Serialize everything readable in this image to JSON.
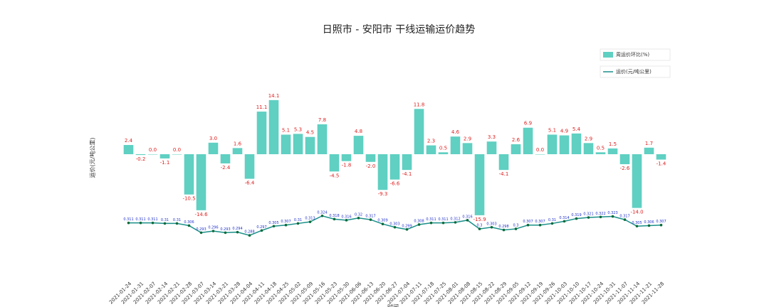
{
  "chart_data": {
    "type": "bar_line",
    "title": "日照市 - 安阳市 干线运输运价趋势",
    "ylabel": "运价(元/吨公里)",
    "xlabel": "时间",
    "categories": [
      "2021-01-24",
      "2021-01-31",
      "2021-02-07",
      "2021-02-14",
      "2021-02-21",
      "2021-02-28",
      "2021-03-07",
      "2021-03-14",
      "2021-03-21",
      "2021-03-28",
      "2021-04-04",
      "2021-04-11",
      "2021-04-18",
      "2021-04-25",
      "2021-05-02",
      "2021-05-09",
      "2021-05-16",
      "2021-05-23",
      "2021-05-30",
      "2021-06-06",
      "2021-06-13",
      "2021-06-20",
      "2021-06-27",
      "2021-07-04",
      "2021-07-11",
      "2021-07-18",
      "2021-07-25",
      "2021-08-01",
      "2021-08-08",
      "2021-08-15",
      "2021-08-22",
      "2021-08-29",
      "2021-09-05",
      "2021-09-12",
      "2021-09-19",
      "2021-09-26",
      "2021-10-03",
      "2021-10-10",
      "2021-10-17",
      "2021-10-24",
      "2021-10-31",
      "2021-11-07",
      "2021-11-14",
      "2021-11-21",
      "2021-11-28"
    ],
    "series": [
      {
        "name": "周运价环比(%)",
        "kind": "bar",
        "color": "#5fd0c2",
        "values": [
          2.4,
          -0.2,
          0.0,
          -1.1,
          0.0,
          -10.5,
          -14.6,
          3.0,
          -2.4,
          1.6,
          -6.4,
          11.1,
          14.1,
          5.1,
          5.3,
          4.5,
          7.8,
          -4.5,
          -1.8,
          4.8,
          -2.0,
          -9.3,
          -6.6,
          -4.1,
          11.8,
          2.3,
          0.5,
          4.6,
          2.9,
          -15.9,
          3.3,
          -4.1,
          2.6,
          6.9,
          0.0,
          5.1,
          4.9,
          5.4,
          2.9,
          0.5,
          1.5,
          -2.6,
          -14.0,
          1.7,
          -1.4
        ],
        "value_labels": [
          "2.4",
          "-0.2",
          "0.0",
          "-1.1",
          "0.0",
          "-10.5",
          "-14.6",
          "3.0",
          "-2.4",
          "1.6",
          "-6.4",
          "11.1",
          "14.1",
          "5.1",
          "5.3",
          "4.5",
          "7.8",
          "-4.5",
          "-1.8",
          "4.8",
          "-2.0",
          "-9.3",
          "-6.6",
          "-4.1",
          "11.8",
          "2.3",
          "0.5",
          "4.6",
          "2.9",
          "-15.9",
          "3.3",
          "-4.1",
          "2.6",
          "6.9",
          "0.0",
          "5.1",
          "4.9",
          "5.4",
          "2.9",
          "0.5",
          "1.5",
          "-2.6",
          "-14.0",
          "1.7",
          "-1.4"
        ]
      },
      {
        "name": "运价(元/吨公里)",
        "kind": "line",
        "axis": "y2",
        "color": "#1a8f8a",
        "values": [
          0.311,
          0.311,
          0.311,
          0.31,
          0.31,
          0.306,
          0.293,
          0.296,
          0.293,
          0.294,
          0.288,
          0.297,
          0.305,
          0.307,
          0.31,
          0.313,
          0.324,
          0.318,
          0.316,
          0.32,
          0.317,
          0.309,
          0.303,
          0.299,
          0.308,
          0.311,
          0.311,
          0.312,
          0.316,
          0.3,
          0.303,
          0.298,
          0.3,
          0.307,
          0.307,
          0.31,
          0.314,
          0.319,
          0.321,
          0.322,
          0.323,
          0.317,
          0.305,
          0.306,
          0.307
        ]
      }
    ],
    "ylim": [
      -35,
      30
    ],
    "y2lim": [
      0.19,
      0.65
    ],
    "legend": "upper right"
  }
}
